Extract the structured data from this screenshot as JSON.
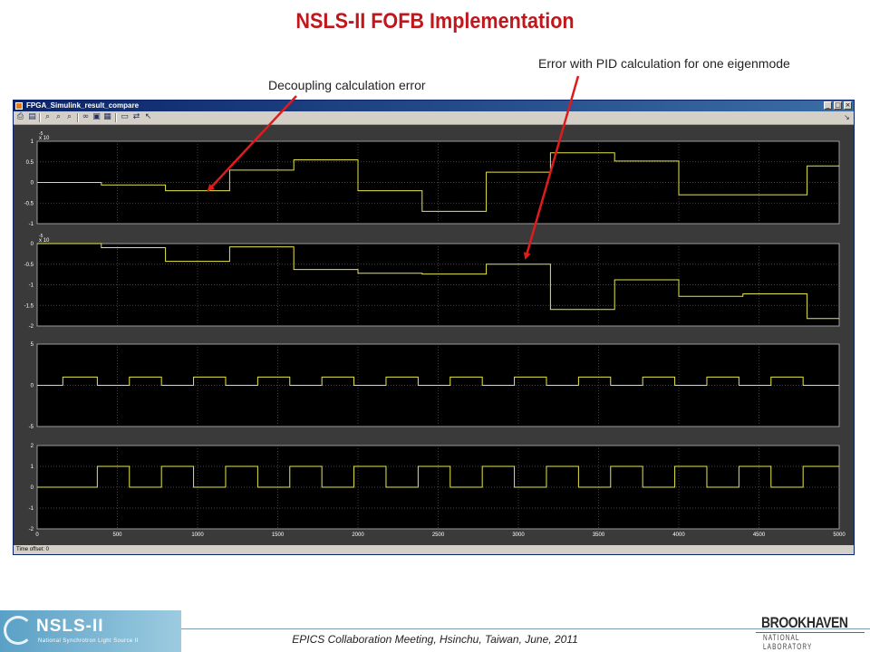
{
  "slide": {
    "title": "NSLS-II FOFB Implementation",
    "annotation_decoupling": "Decoupling calculation error",
    "annotation_pid": "Error with PID calculation for one eigenmode",
    "footer": "EPICS Collaboration Meeting, Hsinchu, Taiwan, June, 2011"
  },
  "logos": {
    "nsls_big": "NSLS-II",
    "nsls_small": "National Synchrotron Light Source II",
    "bnl_top": "BROOKHAVEN",
    "bnl_bottom": "NATIONAL LABORATORY"
  },
  "window": {
    "title": "FPGA_Simulink_result_compare",
    "minimize": "_",
    "maximize": "□",
    "close": "×",
    "status": "Time offset:  0",
    "toolbar_icons": [
      "print-icon",
      "parameters-icon",
      "zoom-icon",
      "zoom-x-icon",
      "zoom-y-icon",
      "binoculars-icon",
      "save-axes-icon",
      "restore-axes-icon",
      "floating-scope-icon",
      "signal-selector-icon",
      "lock-axes-icon"
    ]
  },
  "colors": {
    "trace": "#e6e64a",
    "plot_bg": "#000000",
    "grid": "#5a5a5a",
    "scope_bg": "#3a3a3a",
    "title_red": "#c0171c",
    "arrow_red": "#e01b1b"
  },
  "chart_data": [
    {
      "type": "line",
      "step": true,
      "multiplier_label": "x 10",
      "exponent_label": "-5",
      "xlim": [
        0,
        5000
      ],
      "ylim": [
        -1,
        1
      ],
      "y_ticks": [
        "1",
        "0.5",
        "0",
        "-0.5",
        "-1"
      ],
      "y_tick_values": [
        1,
        0.5,
        0,
        -0.5,
        -1
      ],
      "x": [
        0,
        400,
        800,
        1200,
        1600,
        2000,
        2400,
        2800,
        3200,
        3600,
        4000,
        4400,
        4800,
        5000
      ],
      "y": [
        0,
        -0.06,
        -0.2,
        0.3,
        0.55,
        -0.2,
        -0.7,
        0.25,
        0.72,
        0.52,
        -0.3,
        -0.3,
        0.4,
        0.4
      ]
    },
    {
      "type": "line",
      "step": true,
      "multiplier_label": "x 10",
      "exponent_label": "-5",
      "xlim": [
        0,
        5000
      ],
      "ylim": [
        -2,
        0
      ],
      "y_ticks": [
        "0",
        "-0.5",
        "-1",
        "-1.5",
        "-2"
      ],
      "y_tick_values": [
        0,
        -0.5,
        -1,
        -1.5,
        -2
      ],
      "x": [
        0,
        400,
        800,
        1200,
        1600,
        2000,
        2400,
        2800,
        3200,
        3600,
        4000,
        4400,
        4800,
        5000
      ],
      "y": [
        0,
        -0.1,
        -0.43,
        -0.08,
        -0.63,
        -0.72,
        -0.74,
        -0.5,
        -1.6,
        -0.88,
        -1.28,
        -1.22,
        -1.82,
        -1.82
      ]
    },
    {
      "type": "line",
      "step": true,
      "xlim": [
        0,
        5000
      ],
      "ylim": [
        -5,
        5
      ],
      "y_ticks": [
        "5",
        "0",
        "-5"
      ],
      "y_tick_values": [
        5,
        0,
        -5
      ],
      "x": [
        0,
        160,
        375,
        575,
        775,
        975,
        1175,
        1375,
        1575,
        1775,
        1975,
        2175,
        2375,
        2575,
        2775,
        2975,
        3175,
        3375,
        3575,
        3775,
        3975,
        4175,
        4375,
        4575,
        4775,
        5000
      ],
      "y": [
        0,
        1,
        0,
        1,
        0,
        1,
        0,
        1,
        0,
        1,
        0,
        1,
        0,
        1,
        0,
        1,
        0,
        1,
        0,
        1,
        0,
        1,
        0,
        1,
        0,
        0
      ]
    },
    {
      "type": "line",
      "step": true,
      "xlim": [
        0,
        5000
      ],
      "ylim": [
        -2,
        2
      ],
      "x_ticks": [
        "0",
        "500",
        "1000",
        "1500",
        "2000",
        "2500",
        "3000",
        "3500",
        "4000",
        "4500",
        "5000"
      ],
      "x_tick_values": [
        0,
        500,
        1000,
        1500,
        2000,
        2500,
        3000,
        3500,
        4000,
        4500,
        5000
      ],
      "y_ticks": [
        "2",
        "1",
        "0",
        "-1",
        "-2"
      ],
      "y_tick_values": [
        2,
        1,
        0,
        -1,
        -2
      ],
      "x": [
        0,
        375,
        575,
        775,
        975,
        1175,
        1375,
        1575,
        1775,
        1975,
        2175,
        2375,
        2575,
        2775,
        2975,
        3175,
        3375,
        3575,
        3775,
        3975,
        4175,
        4375,
        4575,
        4775,
        5000
      ],
      "y": [
        0,
        1,
        0,
        1,
        0,
        1,
        0,
        1,
        0,
        1,
        0,
        1,
        0,
        1,
        0,
        1,
        0,
        1,
        0,
        1,
        0,
        1,
        0,
        1,
        1
      ]
    }
  ]
}
